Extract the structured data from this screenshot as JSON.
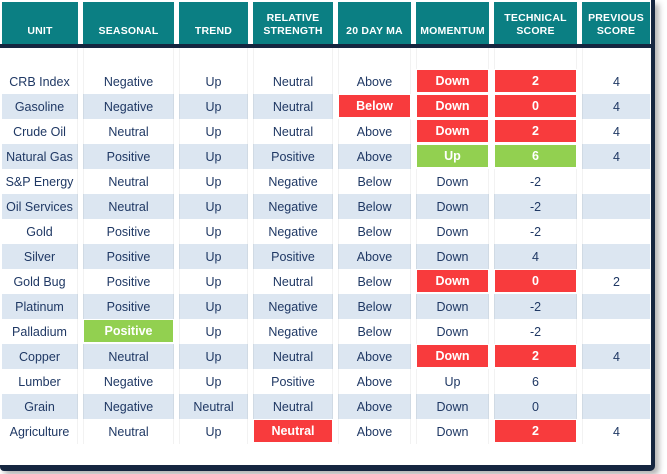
{
  "colors": {
    "header_bg": "#0B7F83",
    "navy": "#152640",
    "red": "#F83B3D",
    "green": "#92D050",
    "alt_row": "#DCE6F1",
    "text_navy": "#1F3864"
  },
  "chart_data": {
    "type": "table",
    "title": "Commodity technical score table",
    "columns": [
      "UNIT",
      "SEASONAL",
      "TREND",
      "RELATIVE STRENGTH",
      "20 DAY MA",
      "MOMENTUM",
      "TECHNICAL SCORE",
      "PREVIOUS SCORE"
    ],
    "column_keys": [
      "unit",
      "seasonal",
      "trend",
      "relative-strength",
      "20-day-ma",
      "momentum",
      "technical-score",
      "previous-score"
    ],
    "rows": [
      [
        {
          "t": "CRB Index"
        },
        {
          "t": "Negative"
        },
        {
          "t": "Up"
        },
        {
          "t": "Neutral"
        },
        {
          "t": "Above"
        },
        {
          "t": "Down",
          "hl": "red"
        },
        {
          "t": "2",
          "hl": "red"
        },
        {
          "t": "4"
        }
      ],
      [
        {
          "t": "Gasoline"
        },
        {
          "t": "Negative"
        },
        {
          "t": "Up"
        },
        {
          "t": "Neutral"
        },
        {
          "t": "Below",
          "hl": "red"
        },
        {
          "t": "Down",
          "hl": "red"
        },
        {
          "t": "0",
          "hl": "red"
        },
        {
          "t": "4"
        }
      ],
      [
        {
          "t": "Crude Oil"
        },
        {
          "t": "Neutral"
        },
        {
          "t": "Up"
        },
        {
          "t": "Neutral"
        },
        {
          "t": "Above"
        },
        {
          "t": "Down",
          "hl": "red"
        },
        {
          "t": "2",
          "hl": "red"
        },
        {
          "t": "4"
        }
      ],
      [
        {
          "t": "Natural Gas"
        },
        {
          "t": "Positive"
        },
        {
          "t": "Up"
        },
        {
          "t": "Positive"
        },
        {
          "t": "Above"
        },
        {
          "t": "Up",
          "hl": "green"
        },
        {
          "t": "6",
          "hl": "green"
        },
        {
          "t": "4"
        }
      ],
      [
        {
          "t": "S&P Energy"
        },
        {
          "t": "Neutral"
        },
        {
          "t": "Up"
        },
        {
          "t": "Negative"
        },
        {
          "t": "Below"
        },
        {
          "t": "Down"
        },
        {
          "t": "-2"
        },
        {
          "t": ""
        }
      ],
      [
        {
          "t": "Oil Services"
        },
        {
          "t": "Neutral"
        },
        {
          "t": "Up"
        },
        {
          "t": "Negative"
        },
        {
          "t": "Below"
        },
        {
          "t": "Down"
        },
        {
          "t": "-2"
        },
        {
          "t": ""
        }
      ],
      [
        {
          "t": "Gold"
        },
        {
          "t": "Positive"
        },
        {
          "t": "Up"
        },
        {
          "t": "Negative"
        },
        {
          "t": "Below"
        },
        {
          "t": "Down"
        },
        {
          "t": "-2"
        },
        {
          "t": ""
        }
      ],
      [
        {
          "t": "Silver"
        },
        {
          "t": "Positive"
        },
        {
          "t": "Up"
        },
        {
          "t": "Positive"
        },
        {
          "t": "Above"
        },
        {
          "t": "Down"
        },
        {
          "t": "4"
        },
        {
          "t": ""
        }
      ],
      [
        {
          "t": "Gold Bug"
        },
        {
          "t": "Positive"
        },
        {
          "t": "Up"
        },
        {
          "t": "Neutral"
        },
        {
          "t": "Below"
        },
        {
          "t": "Down",
          "hl": "red"
        },
        {
          "t": "0",
          "hl": "red"
        },
        {
          "t": "2"
        }
      ],
      [
        {
          "t": "Platinum"
        },
        {
          "t": "Positive"
        },
        {
          "t": "Up"
        },
        {
          "t": "Negative"
        },
        {
          "t": "Below"
        },
        {
          "t": "Down"
        },
        {
          "t": "-2"
        },
        {
          "t": ""
        }
      ],
      [
        {
          "t": "Palladium"
        },
        {
          "t": "Positive",
          "hl": "green"
        },
        {
          "t": "Up"
        },
        {
          "t": "Negative"
        },
        {
          "t": "Below"
        },
        {
          "t": "Down"
        },
        {
          "t": "-2"
        },
        {
          "t": ""
        }
      ],
      [
        {
          "t": "Copper"
        },
        {
          "t": "Neutral"
        },
        {
          "t": "Up"
        },
        {
          "t": "Neutral"
        },
        {
          "t": "Above"
        },
        {
          "t": "Down",
          "hl": "red"
        },
        {
          "t": "2",
          "hl": "red"
        },
        {
          "t": "4"
        }
      ],
      [
        {
          "t": "Lumber"
        },
        {
          "t": "Negative"
        },
        {
          "t": "Up"
        },
        {
          "t": "Positive"
        },
        {
          "t": "Above"
        },
        {
          "t": "Up"
        },
        {
          "t": "6"
        },
        {
          "t": ""
        }
      ],
      [
        {
          "t": "Grain"
        },
        {
          "t": "Negative"
        },
        {
          "t": "Neutral"
        },
        {
          "t": "Neutral"
        },
        {
          "t": "Above"
        },
        {
          "t": "Down"
        },
        {
          "t": "0"
        },
        {
          "t": ""
        }
      ],
      [
        {
          "t": "Agriculture"
        },
        {
          "t": "Neutral"
        },
        {
          "t": "Up"
        },
        {
          "t": "Neutral",
          "hl": "red"
        },
        {
          "t": "Above"
        },
        {
          "t": "Down"
        },
        {
          "t": "2",
          "hl": "red"
        },
        {
          "t": "4"
        }
      ]
    ],
    "legend": {
      "red_highlight_meaning": "negative/bearish signal",
      "green_highlight_meaning": "positive/bullish signal"
    },
    "layout": {
      "row_striping": "odd rows white, even rows light blue",
      "header_style": "teal background, white bold uppercase text"
    }
  }
}
